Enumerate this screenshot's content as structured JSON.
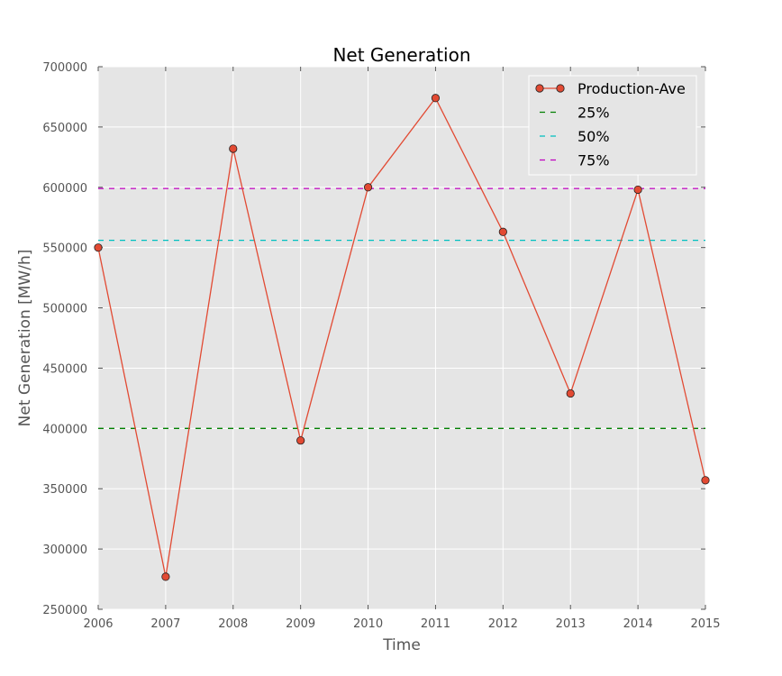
{
  "chart_data": {
    "type": "line",
    "title": "Net Generation",
    "xlabel": "Time",
    "ylabel": "Net Generation [MW/h]",
    "xlim": [
      2006,
      2015
    ],
    "ylim": [
      250000,
      700000
    ],
    "x_ticks": [
      "2006",
      "2007",
      "2008",
      "2009",
      "2010",
      "2011",
      "2012",
      "2013",
      "2014",
      "2015"
    ],
    "y_ticks": [
      "250000",
      "300000",
      "350000",
      "400000",
      "450000",
      "500000",
      "550000",
      "600000",
      "650000",
      "700000"
    ],
    "grid": true,
    "legend_position": "top-right",
    "series": [
      {
        "name": "Production-Ave",
        "x": [
          2006,
          2007,
          2008,
          2009,
          2010,
          2011,
          2012,
          2013,
          2014,
          2015
        ],
        "values": [
          550000,
          277000,
          632000,
          390000,
          600000,
          674000,
          563000,
          429000,
          598000,
          357000
        ],
        "color": "#e24a33",
        "marker": "circle"
      }
    ],
    "reference_lines": [
      {
        "name": "25%",
        "value": 400000,
        "color": "#008000",
        "style": "dashed"
      },
      {
        "name": "50%",
        "value": 556000,
        "color": "#00bfbf",
        "style": "dashed"
      },
      {
        "name": "75%",
        "value": 599000,
        "color": "#bf00bf",
        "style": "dashed"
      }
    ]
  }
}
